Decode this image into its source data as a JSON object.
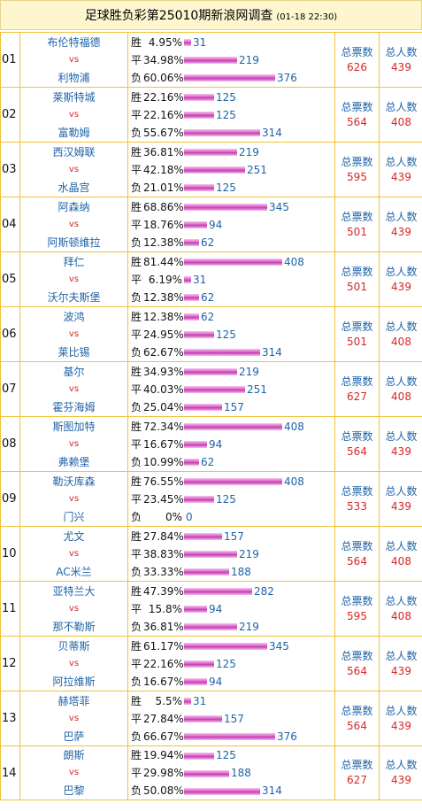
{
  "header": {
    "title": "足球胜负彩第25010期新浪网调查",
    "datetime": "(01-18 22:30)"
  },
  "labels": {
    "win": "胜",
    "draw": "平",
    "loss": "负",
    "vs": "vs",
    "total_votes": "总票数",
    "total_people": "总人数"
  },
  "colors": {
    "bar": "#c43ab3",
    "team": "#1f63a8",
    "vs": "#d62828",
    "border": "#f0c23a",
    "title_bg": "#fef6cf"
  },
  "matches": [
    {
      "no": "01",
      "home": "布伦特福德",
      "away": "利物浦",
      "win_pct": "4.95%",
      "win_cnt": "31",
      "draw_pct": "34.98%",
      "draw_cnt": "219",
      "loss_pct": "60.06%",
      "loss_cnt": "376",
      "votes": "626",
      "people": "439"
    },
    {
      "no": "02",
      "home": "莱斯特城",
      "away": "富勒姆",
      "win_pct": "22.16%",
      "win_cnt": "125",
      "draw_pct": "22.16%",
      "draw_cnt": "125",
      "loss_pct": "55.67%",
      "loss_cnt": "314",
      "votes": "564",
      "people": "408"
    },
    {
      "no": "03",
      "home": "西汉姆联",
      "away": "水晶宫",
      "win_pct": "36.81%",
      "win_cnt": "219",
      "draw_pct": "42.18%",
      "draw_cnt": "251",
      "loss_pct": "21.01%",
      "loss_cnt": "125",
      "votes": "595",
      "people": "439"
    },
    {
      "no": "04",
      "home": "阿森纳",
      "away": "阿斯顿维拉",
      "win_pct": "68.86%",
      "win_cnt": "345",
      "draw_pct": "18.76%",
      "draw_cnt": "94",
      "loss_pct": "12.38%",
      "loss_cnt": "62",
      "votes": "501",
      "people": "439"
    },
    {
      "no": "05",
      "home": "拜仁",
      "away": "沃尔夫斯堡",
      "win_pct": "81.44%",
      "win_cnt": "408",
      "draw_pct": "6.19%",
      "draw_cnt": "31",
      "loss_pct": "12.38%",
      "loss_cnt": "62",
      "votes": "501",
      "people": "439"
    },
    {
      "no": "06",
      "home": "波鸿",
      "away": "莱比锡",
      "win_pct": "12.38%",
      "win_cnt": "62",
      "draw_pct": "24.95%",
      "draw_cnt": "125",
      "loss_pct": "62.67%",
      "loss_cnt": "314",
      "votes": "501",
      "people": "408"
    },
    {
      "no": "07",
      "home": "基尔",
      "away": "霍芬海姆",
      "win_pct": "34.93%",
      "win_cnt": "219",
      "draw_pct": "40.03%",
      "draw_cnt": "251",
      "loss_pct": "25.04%",
      "loss_cnt": "157",
      "votes": "627",
      "people": "408"
    },
    {
      "no": "08",
      "home": "斯图加特",
      "away": "弗赖堡",
      "win_pct": "72.34%",
      "win_cnt": "408",
      "draw_pct": "16.67%",
      "draw_cnt": "94",
      "loss_pct": "10.99%",
      "loss_cnt": "62",
      "votes": "564",
      "people": "439"
    },
    {
      "no": "09",
      "home": "勒沃库森",
      "away": "门兴",
      "win_pct": "76.55%",
      "win_cnt": "408",
      "draw_pct": "23.45%",
      "draw_cnt": "125",
      "loss_pct": "0%",
      "loss_cnt": "0",
      "votes": "533",
      "people": "439"
    },
    {
      "no": "10",
      "home": "尤文",
      "away": "AC米兰",
      "win_pct": "27.84%",
      "win_cnt": "157",
      "draw_pct": "38.83%",
      "draw_cnt": "219",
      "loss_pct": "33.33%",
      "loss_cnt": "188",
      "votes": "564",
      "people": "408"
    },
    {
      "no": "11",
      "home": "亚特兰大",
      "away": "那不勒斯",
      "win_pct": "47.39%",
      "win_cnt": "282",
      "draw_pct": "15.8%",
      "draw_cnt": "94",
      "loss_pct": "36.81%",
      "loss_cnt": "219",
      "votes": "595",
      "people": "408"
    },
    {
      "no": "12",
      "home": "贝蒂斯",
      "away": "阿拉维斯",
      "win_pct": "61.17%",
      "win_cnt": "345",
      "draw_pct": "22.16%",
      "draw_cnt": "125",
      "loss_pct": "16.67%",
      "loss_cnt": "94",
      "votes": "564",
      "people": "439"
    },
    {
      "no": "13",
      "home": "赫塔菲",
      "away": "巴萨",
      "win_pct": "5.5%",
      "win_cnt": "31",
      "draw_pct": "27.84%",
      "draw_cnt": "157",
      "loss_pct": "66.67%",
      "loss_cnt": "376",
      "votes": "564",
      "people": "439"
    },
    {
      "no": "14",
      "home": "朗斯",
      "away": "巴黎",
      "win_pct": "19.94%",
      "win_cnt": "125",
      "draw_pct": "29.98%",
      "draw_cnt": "188",
      "loss_pct": "50.08%",
      "loss_cnt": "314",
      "votes": "627",
      "people": "439"
    }
  ]
}
